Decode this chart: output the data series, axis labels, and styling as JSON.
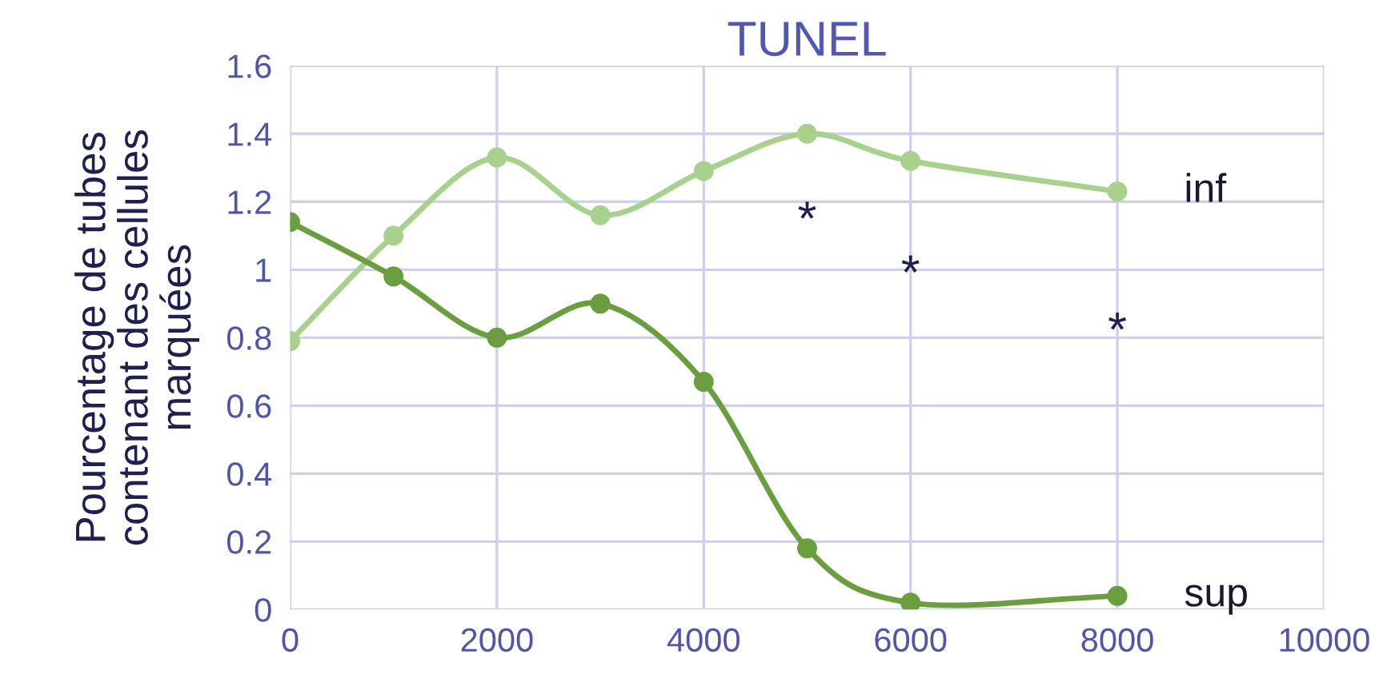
{
  "chart_data": {
    "type": "line",
    "title": "TUNEL",
    "ylabel": "Pourcentage de tubes\ncontenant des cellules\nmarquées",
    "x": [
      0,
      1000,
      2000,
      3000,
      4000,
      5000,
      6000,
      8000
    ],
    "series": [
      {
        "name": "inf",
        "color": "#a9d18e",
        "values": [
          0.79,
          1.1,
          1.33,
          1.16,
          1.29,
          1.4,
          1.32,
          1.23
        ]
      },
      {
        "name": "sup",
        "color": "#6a9e3e",
        "values": [
          1.14,
          0.98,
          0.8,
          0.9,
          0.67,
          0.18,
          0.02,
          0.04
        ]
      }
    ],
    "annotations": [
      "*",
      "*",
      "*"
    ],
    "xlim": [
      0,
      10000
    ],
    "xticks": [
      0,
      2000,
      4000,
      6000,
      8000,
      10000
    ],
    "ylim": [
      0,
      1.6
    ],
    "yticks": [
      0,
      {
        "value": 0.2,
        "label": "0.2"
      },
      {
        "value": 0.4,
        "label": "0.4"
      },
      {
        "value": 0.6,
        "label": "0.6"
      },
      {
        "value": 0.8,
        "label": "0.8"
      },
      1,
      {
        "value": 1.2,
        "label": "1.2"
      },
      {
        "value": 1.4,
        "label": "1.4"
      },
      {
        "value": 1.6,
        "label": "1.6"
      }
    ],
    "grid": true,
    "legend": false,
    "marker": "circle",
    "line_style": "solid"
  }
}
